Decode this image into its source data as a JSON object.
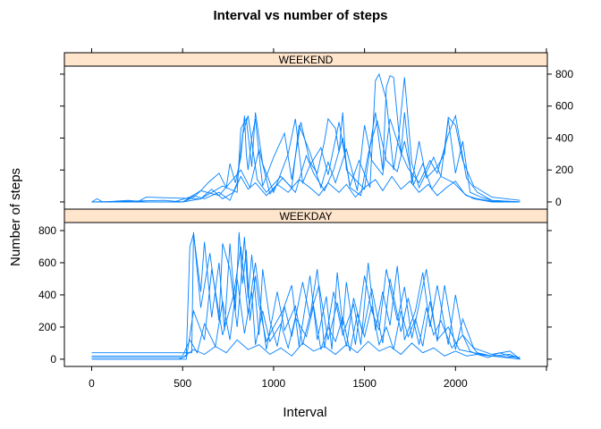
{
  "chart_data": {
    "type": "line",
    "title": "Interval vs number of steps",
    "xlabel": "Interval",
    "ylabel": "Number of steps",
    "xlim": [
      -150,
      2505
    ],
    "ylim": [
      -45,
      850
    ],
    "x_ticks": [
      "0",
      "500",
      "1000",
      "1500",
      "2000"
    ],
    "y_ticks": [
      "0",
      "200",
      "400",
      "600",
      "800"
    ],
    "line_color": "#0080ff",
    "strip_color": "#ffe5cc",
    "panels": [
      {
        "name": "WEEKEND",
        "series": [
          {
            "x": [
              0,
              30,
              60,
              200,
              300,
              500,
              560,
              600,
              640,
              700,
              740,
              760,
              790,
              820,
              840,
              850,
              860,
              880,
              900,
              920,
              940,
              1000,
              1060,
              1100,
              1150,
              1200,
              1240,
              1280,
              1300,
              1340,
              1360,
              1380,
              1400,
              1440,
              1500,
              1540,
              1560,
              1600,
              1620,
              1640,
              1660,
              1700,
              1720,
              1760,
              1800,
              1840,
              1900,
              1940,
              1960,
              2000,
              2040,
              2100,
              2200,
              2355
            ],
            "y": [
              0,
              20,
              0,
              10,
              0,
              0,
              30,
              70,
              120,
              180,
              90,
              240,
              120,
              280,
              540,
              300,
              200,
              400,
              520,
              300,
              100,
              280,
              430,
              140,
              500,
              250,
              180,
              380,
              520,
              460,
              310,
              560,
              200,
              150,
              80,
              420,
              560,
              200,
              720,
              790,
              780,
              300,
              560,
              120,
              380,
              150,
              220,
              300,
              530,
              480,
              260,
              100,
              30,
              10
            ]
          },
          {
            "x": [
              0,
              250,
              300,
              600,
              720,
              800,
              820,
              850,
              880,
              900,
              940,
              1000,
              1080,
              1120,
              1160,
              1200,
              1260,
              1300,
              1360,
              1420,
              1470,
              1530,
              1560,
              1580,
              1620,
              1660,
              1690,
              1720,
              1760,
              1800,
              1880,
              1920,
              1960,
              2000,
              2040,
              2080,
              2140,
              2200,
              2355
            ],
            "y": [
              0,
              0,
              30,
              20,
              100,
              60,
              460,
              520,
              220,
              560,
              240,
              60,
              300,
              520,
              120,
              230,
              340,
              170,
              500,
              100,
              260,
              90,
              760,
              800,
              640,
              200,
              430,
              780,
              240,
              90,
              280,
              160,
              520,
              180,
              380,
              60,
              30,
              10,
              0
            ],
            "colorKey": "line_color"
          },
          {
            "x": [
              0,
              500,
              560,
              620,
              700,
              760,
              800,
              830,
              860,
              880,
              910,
              960,
              1040,
              1100,
              1140,
              1200,
              1260,
              1300,
              1340,
              1400,
              1460,
              1500,
              1540,
              1600,
              1640,
              1700,
              1740,
              1800,
              1860,
              1900,
              1960,
              2000,
              2060,
              2120,
              2200,
              2355
            ],
            "y": [
              0,
              0,
              40,
              20,
              60,
              10,
              120,
              420,
              540,
              380,
              140,
              60,
              160,
              90,
              480,
              310,
              90,
              250,
              120,
              330,
              70,
              480,
              260,
              170,
              520,
              310,
              210,
              120,
              260,
              180,
              420,
              540,
              150,
              60,
              10,
              0
            ]
          },
          {
            "x": [
              0,
              400,
              500,
              600,
              660,
              720,
              780,
              820,
              860,
              900,
              960,
              1020,
              1080,
              1140,
              1200,
              1250,
              1300,
              1360,
              1400,
              1450,
              1500,
              1560,
              1600,
              1650,
              1700,
              1750,
              1800,
              1850,
              1900,
              1950,
              2000,
              2050,
              2100,
              2150,
              2200,
              2355
            ],
            "y": [
              0,
              10,
              0,
              20,
              80,
              20,
              60,
              160,
              80,
              120,
              40,
              110,
              60,
              140,
              90,
              40,
              120,
              60,
              110,
              30,
              90,
              140,
              70,
              160,
              80,
              130,
              60,
              110,
              40,
              90,
              130,
              50,
              20,
              10,
              0,
              0
            ]
          },
          {
            "x": [
              0,
              450,
              540,
              600,
              700,
              760,
              820,
              870,
              920,
              980,
              1050,
              1120,
              1180,
              1220,
              1280,
              1330,
              1380,
              1420,
              1480,
              1520,
              1570,
              1620,
              1680,
              1720,
              1770,
              1820,
              1870,
              1920,
              1990,
              2060,
              2120,
              2200,
              2355
            ],
            "y": [
              0,
              0,
              30,
              70,
              40,
              120,
              200,
              90,
              330,
              50,
              150,
              60,
              290,
              180,
              70,
              200,
              400,
              90,
              40,
              300,
              510,
              260,
              190,
              380,
              110,
              240,
              80,
              160,
              120,
              40,
              20,
              5,
              0
            ]
          }
        ]
      },
      {
        "name": "WEEKDAY",
        "series": [
          {
            "x": [
              0,
              480,
              520,
              540,
              560,
              600,
              620,
              660,
              700,
              730,
              760,
              790,
              810,
              830,
              850,
              870,
              900,
              920,
              960,
              1000,
              1050,
              1100,
              1140,
              1200,
              1240,
              1290,
              1320,
              1350,
              1380,
              1400,
              1450,
              1500,
              1540,
              1580,
              1620,
              1680,
              1720,
              1760,
              1800,
              1840,
              1880,
              1900,
              1940,
              2000,
              2040,
              2100,
              2200,
              2300,
              2355
            ],
            "y": [
              0,
              0,
              20,
              700,
              780,
              420,
              730,
              260,
              600,
              180,
              720,
              300,
              790,
              470,
              680,
              240,
              520,
              340,
              110,
              200,
              300,
              460,
              80,
              520,
              120,
              390,
              60,
              540,
              210,
              480,
              90,
              520,
              300,
              180,
              560,
              240,
              450,
              130,
              340,
              560,
              250,
              110,
              460,
              60,
              250,
              70,
              30,
              50,
              0
            ]
          },
          {
            "x": [
              0,
              300,
              500,
              550,
              560,
              600,
              650,
              700,
              720,
              760,
              800,
              840,
              860,
              880,
              920,
              940,
              980,
              1020,
              1060,
              1100,
              1160,
              1200,
              1240,
              1280,
              1330,
              1380,
              1440,
              1480,
              1520,
              1560,
              1600,
              1640,
              1680,
              1720,
              1780,
              1820,
              1860,
              1900,
              1960,
              2000,
              2040,
              2080,
              2120,
              2200,
              2355
            ],
            "y": [
              40,
              40,
              40,
              40,
              790,
              320,
              660,
              240,
              720,
              560,
              200,
              760,
              380,
              650,
              150,
              560,
              240,
              80,
              330,
              140,
              480,
              260,
              560,
              70,
              420,
              150,
              340,
              90,
              600,
              180,
              420,
              210,
              580,
              120,
              300,
              540,
              200,
              460,
              90,
              400,
              150,
              50,
              30,
              20,
              0
            ]
          },
          {
            "x": [
              0,
              500,
              540,
              580,
              620,
              680,
              720,
              760,
              800,
              840,
              880,
              900,
              940,
              980,
              1040,
              1080,
              1120,
              1180,
              1220,
              1260,
              1300,
              1340,
              1380,
              1420,
              1460,
              1500,
              1540,
              1580,
              1620,
              1660,
              1700,
              1740,
              1780,
              1820,
              1860,
              1900,
              1960,
              2020,
              2100,
              2200,
              2355
            ],
            "y": [
              20,
              20,
              120,
              40,
              220,
              80,
              360,
              120,
              500,
              160,
              420,
              90,
              300,
              110,
              220,
              70,
              260,
              140,
              330,
              60,
              200,
              110,
              260,
              50,
              280,
              140,
              330,
              90,
              200,
              60,
              300,
              140,
              250,
              80,
              360,
              120,
              200,
              60,
              40,
              20,
              10
            ]
          },
          {
            "x": [
              0,
              500,
              560,
              620,
              680,
              740,
              800,
              860,
              920,
              980,
              1040,
              1100,
              1160,
              1220,
              1280,
              1340,
              1400,
              1460,
              1520,
              1580,
              1640,
              1700,
              1760,
              1820,
              1880,
              1940,
              2000,
              2060,
              2120,
              2180,
              2240,
              2300,
              2355
            ],
            "y": [
              10,
              10,
              60,
              30,
              80,
              40,
              120,
              60,
              90,
              30,
              70,
              20,
              100,
              50,
              80,
              30,
              90,
              40,
              110,
              50,
              80,
              30,
              100,
              40,
              70,
              20,
              50,
              20,
              30,
              10,
              40,
              20,
              10
            ]
          },
          {
            "x": [
              0,
              520,
              560,
              620,
              660,
              720,
              780,
              820,
              860,
              900,
              960,
              1020,
              1060,
              1120,
              1160,
              1200,
              1250,
              1300,
              1350,
              1400,
              1440,
              1490,
              1540,
              1600,
              1640,
              1700,
              1740,
              1800,
              1840,
              1880,
              1920,
              1980,
              2040,
              2120,
              2200,
              2300,
              2355
            ],
            "y": [
              0,
              0,
              300,
              120,
              560,
              150,
              400,
              700,
              280,
              600,
              60,
              420,
              180,
              330,
              90,
              270,
              460,
              120,
              350,
              80,
              380,
              160,
              440,
              100,
              500,
              170,
              380,
              90,
              320,
              150,
              240,
              70,
              150,
              40,
              20,
              30,
              0
            ]
          }
        ]
      }
    ]
  }
}
